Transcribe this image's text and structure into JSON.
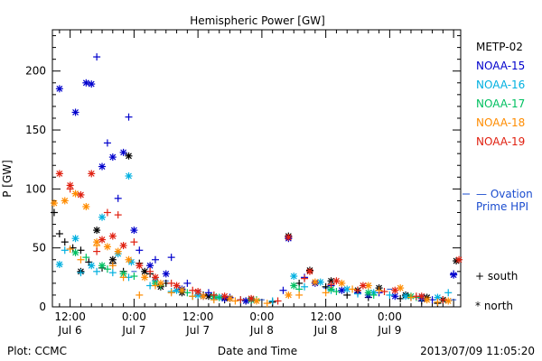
{
  "footer": {
    "plot_source": "Plot: CCMC",
    "timestamp": "2013/07/09 11:05:20"
  },
  "ovation": {
    "line1": "— Ovation",
    "line2": "Prime HPI"
  },
  "markers": {
    "south_label": "+ south",
    "north_label": "* north"
  },
  "chart_data": {
    "type": "scatter",
    "title": "Hemispheric Power [GW]",
    "xlabel": "Date and Time",
    "ylabel": "P [GW]",
    "ylim": [
      0,
      235
    ],
    "xlim": [
      "2013-07-06T08:40",
      "2013-07-09T13:20"
    ],
    "yticks": [
      0,
      50,
      100,
      150,
      200
    ],
    "xticks": [
      {
        "t": "2013-07-06T12:00",
        "time": "12:00",
        "date": "Jul 6"
      },
      {
        "t": "2013-07-07T00:00",
        "time": "0:00",
        "date": "Jul 7"
      },
      {
        "t": "2013-07-07T12:00",
        "time": "12:00",
        "date": "Jul 7"
      },
      {
        "t": "2013-07-08T00:00",
        "time": "0:00",
        "date": "Jul 8"
      },
      {
        "t": "2013-07-08T12:00",
        "time": "12:00",
        "date": "Jul 8"
      },
      {
        "t": "2013-07-09T00:00",
        "time": "0:00",
        "date": "Jul 9"
      }
    ],
    "legend_position": "right",
    "series": [
      {
        "name": "METP-02",
        "color": "#000000",
        "south": [
          [
            "2013-07-06T09:00",
            80
          ],
          [
            "2013-07-06T10:00",
            62
          ],
          [
            "2013-07-06T11:00",
            55
          ],
          [
            "2013-07-06T12:30",
            50
          ],
          [
            "2013-07-06T14:00",
            48
          ],
          [
            "2013-07-06T15:30",
            38
          ],
          [
            "2013-07-06T18:00",
            33
          ],
          [
            "2013-07-06T20:00",
            37
          ],
          [
            "2013-07-06T22:00",
            30
          ],
          [
            "2013-07-07T01:00",
            37
          ],
          [
            "2013-07-07T03:00",
            28
          ],
          [
            "2013-07-07T06:00",
            20
          ],
          [
            "2013-07-07T09:00",
            14
          ],
          [
            "2013-07-07T13:00",
            10
          ],
          [
            "2013-07-07T17:00",
            6
          ],
          [
            "2013-07-07T21:00",
            5
          ],
          [
            "2013-07-08T02:00",
            4
          ],
          [
            "2013-07-08T07:00",
            20
          ],
          [
            "2013-07-08T12:00",
            17
          ],
          [
            "2013-07-08T16:00",
            10
          ],
          [
            "2013-07-08T20:00",
            8
          ],
          [
            "2013-07-09T02:00",
            7
          ],
          [
            "2013-07-09T06:00",
            5
          ],
          [
            "2013-07-09T09:00",
            3
          ]
        ],
        "north": [
          [
            "2013-07-06T14:00",
            30
          ],
          [
            "2013-07-06T17:00",
            65
          ],
          [
            "2013-07-06T20:00",
            40
          ],
          [
            "2013-07-06T23:00",
            128
          ],
          [
            "2013-07-07T02:00",
            30
          ],
          [
            "2013-07-07T05:00",
            17
          ],
          [
            "2013-07-07T09:00",
            12
          ],
          [
            "2013-07-07T14:00",
            9
          ],
          [
            "2013-07-07T18:00",
            7
          ],
          [
            "2013-07-07T22:00",
            6
          ],
          [
            "2013-07-08T05:00",
            60
          ],
          [
            "2013-07-08T09:00",
            31
          ],
          [
            "2013-07-08T13:00",
            22
          ],
          [
            "2013-07-08T18:00",
            14
          ],
          [
            "2013-07-08T22:00",
            16
          ],
          [
            "2013-07-09T03:00",
            10
          ],
          [
            "2013-07-09T07:00",
            8
          ],
          [
            "2013-07-09T10:00",
            6
          ],
          [
            "2013-07-09T12:30",
            39
          ]
        ]
      },
      {
        "name": "NOAA-15",
        "color": "#0000cc",
        "south": [
          [
            "2013-07-06T17:00",
            212
          ],
          [
            "2013-07-06T19:00",
            139
          ],
          [
            "2013-07-06T21:00",
            92
          ],
          [
            "2013-07-06T23:00",
            161
          ],
          [
            "2013-07-07T01:00",
            48
          ],
          [
            "2013-07-07T04:00",
            40
          ],
          [
            "2013-07-07T07:00",
            42
          ],
          [
            "2013-07-07T10:00",
            20
          ],
          [
            "2013-07-07T14:00",
            12
          ],
          [
            "2013-07-07T18:00",
            8
          ],
          [
            "2013-07-07T22:00",
            6
          ],
          [
            "2013-07-08T04:00",
            14
          ],
          [
            "2013-07-08T08:00",
            25
          ],
          [
            "2013-07-08T13:00",
            18
          ],
          [
            "2013-07-08T18:00",
            12
          ],
          [
            "2013-07-08T22:00",
            12
          ],
          [
            "2013-07-09T04:00",
            8
          ],
          [
            "2013-07-09T08:00",
            6
          ],
          [
            "2013-07-09T12:00",
            28
          ]
        ],
        "north": [
          [
            "2013-07-06T10:00",
            185
          ],
          [
            "2013-07-06T13:00",
            165
          ],
          [
            "2013-07-06T15:00",
            190
          ],
          [
            "2013-07-06T16:00",
            189
          ],
          [
            "2013-07-06T18:00",
            119
          ],
          [
            "2013-07-06T20:00",
            127
          ],
          [
            "2013-07-06T22:00",
            131
          ],
          [
            "2013-07-07T00:00",
            65
          ],
          [
            "2013-07-07T03:00",
            35
          ],
          [
            "2013-07-07T06:00",
            28
          ],
          [
            "2013-07-07T09:00",
            15
          ],
          [
            "2013-07-07T13:00",
            9
          ],
          [
            "2013-07-07T17:00",
            7
          ],
          [
            "2013-07-07T21:00",
            5
          ],
          [
            "2013-07-08T05:00",
            58
          ],
          [
            "2013-07-08T10:00",
            20
          ],
          [
            "2013-07-08T15:00",
            14
          ],
          [
            "2013-07-08T20:00",
            10
          ],
          [
            "2013-07-09T01:00",
            9
          ],
          [
            "2013-07-09T06:00",
            7
          ],
          [
            "2013-07-09T12:00",
            27
          ]
        ]
      },
      {
        "name": "NOAA-16",
        "color": "#00b0e0",
        "south": [
          [
            "2013-07-06T11:00",
            48
          ],
          [
            "2013-07-06T14:00",
            29
          ],
          [
            "2013-07-06T17:00",
            30
          ],
          [
            "2013-07-06T20:00",
            29
          ],
          [
            "2013-07-06T23:00",
            25
          ],
          [
            "2013-07-07T03:00",
            18
          ],
          [
            "2013-07-07T07:00",
            13
          ],
          [
            "2013-07-07T11:00",
            9
          ],
          [
            "2013-07-07T15:00",
            7
          ],
          [
            "2013-07-07T20:00",
            6
          ],
          [
            "2013-07-08T02:00",
            5
          ],
          [
            "2013-07-08T08:00",
            17
          ],
          [
            "2013-07-08T13:00",
            14
          ],
          [
            "2013-07-08T18:00",
            11
          ],
          [
            "2013-07-09T00:00",
            10
          ],
          [
            "2013-07-09T06:00",
            8
          ],
          [
            "2013-07-09T11:00",
            12
          ]
        ],
        "north": [
          [
            "2013-07-06T10:00",
            36
          ],
          [
            "2013-07-06T13:00",
            58
          ],
          [
            "2013-07-06T16:00",
            35
          ],
          [
            "2013-07-06T18:00",
            76
          ],
          [
            "2013-07-06T21:00",
            45
          ],
          [
            "2013-07-06T23:00",
            111
          ],
          [
            "2013-07-06T23:30",
            38
          ],
          [
            "2013-07-07T04:00",
            22
          ],
          [
            "2013-07-07T08:00",
            14
          ],
          [
            "2013-07-07T12:00",
            10
          ],
          [
            "2013-07-07T16:00",
            8
          ],
          [
            "2013-07-07T22:00",
            6
          ],
          [
            "2013-07-08T06:00",
            26
          ],
          [
            "2013-07-08T11:00",
            21
          ],
          [
            "2013-07-08T16:00",
            15
          ],
          [
            "2013-07-08T21:00",
            12
          ],
          [
            "2013-07-09T03:00",
            9
          ],
          [
            "2013-07-09T09:00",
            8
          ]
        ]
      },
      {
        "name": "NOAA-17",
        "color": "#00c060",
        "south": [
          [
            "2013-07-06T15:00",
            42
          ],
          [
            "2013-07-06T19:00",
            32
          ],
          [
            "2013-07-07T00:00",
            26
          ],
          [
            "2013-07-07T05:00",
            18
          ],
          [
            "2013-07-07T10:00",
            12
          ],
          [
            "2013-07-07T16:00",
            8
          ],
          [
            "2013-07-07T23:00",
            6
          ],
          [
            "2013-07-08T07:00",
            15
          ],
          [
            "2013-07-08T14:00",
            13
          ],
          [
            "2013-07-08T21:00",
            10
          ],
          [
            "2013-07-09T05:00",
            8
          ]
        ],
        "north": [
          [
            "2013-07-06T13:00",
            46
          ],
          [
            "2013-07-06T18:00",
            35
          ],
          [
            "2013-07-06T22:00",
            28
          ],
          [
            "2013-07-07T04:00",
            20
          ],
          [
            "2013-07-07T09:00",
            14
          ],
          [
            "2013-07-07T15:00",
            9
          ],
          [
            "2013-07-07T22:00",
            6
          ],
          [
            "2013-07-08T06:00",
            18
          ],
          [
            "2013-07-08T13:00",
            15
          ],
          [
            "2013-07-08T20:00",
            12
          ],
          [
            "2013-07-09T04:00",
            9
          ]
        ]
      },
      {
        "name": "NOAA-18",
        "color": "#ff8c00",
        "south": [
          [
            "2013-07-06T12:00",
            49
          ],
          [
            "2013-07-06T14:00",
            40
          ],
          [
            "2013-07-06T17:00",
            52
          ],
          [
            "2013-07-06T20:00",
            35
          ],
          [
            "2013-07-06T22:00",
            25
          ],
          [
            "2013-07-07T01:00",
            10
          ],
          [
            "2013-07-07T04:00",
            18
          ],
          [
            "2013-07-07T07:00",
            12
          ],
          [
            "2013-07-07T11:00",
            9
          ],
          [
            "2013-07-07T15:00",
            6
          ],
          [
            "2013-07-07T19:00",
            5
          ],
          [
            "2013-07-08T01:00",
            3
          ],
          [
            "2013-07-08T07:00",
            10
          ],
          [
            "2013-07-08T12:00",
            12
          ],
          [
            "2013-07-08T17:00",
            15
          ],
          [
            "2013-07-08T22:00",
            14
          ],
          [
            "2013-07-09T04:00",
            8
          ],
          [
            "2013-07-09T09:00",
            4
          ]
        ],
        "north": [
          [
            "2013-07-06T09:00",
            88
          ],
          [
            "2013-07-06T11:00",
            90
          ],
          [
            "2013-07-06T13:00",
            96
          ],
          [
            "2013-07-06T15:00",
            85
          ],
          [
            "2013-07-06T17:00",
            55
          ],
          [
            "2013-07-06T19:00",
            51
          ],
          [
            "2013-07-06T21:00",
            47
          ],
          [
            "2013-07-06T23:00",
            40
          ],
          [
            "2013-07-07T02:00",
            25
          ],
          [
            "2013-07-07T05:00",
            20
          ],
          [
            "2013-07-07T09:00",
            14
          ],
          [
            "2013-07-07T13:00",
            9
          ],
          [
            "2013-07-07T18:00",
            7
          ],
          [
            "2013-07-07T23:00",
            5
          ],
          [
            "2013-07-08T05:00",
            10
          ],
          [
            "2013-07-08T10:00",
            21
          ],
          [
            "2013-07-08T15:00",
            20
          ],
          [
            "2013-07-08T20:00",
            18
          ],
          [
            "2013-07-09T02:00",
            16
          ],
          [
            "2013-07-09T07:00",
            6
          ],
          [
            "2013-07-09T11:00",
            5
          ]
        ]
      },
      {
        "name": "NOAA-19",
        "color": "#e02010",
        "south": [
          [
            "2013-07-06T12:00",
            100
          ],
          [
            "2013-07-06T17:00",
            47
          ],
          [
            "2013-07-06T19:00",
            80
          ],
          [
            "2013-07-06T21:00",
            78
          ],
          [
            "2013-07-07T00:00",
            55
          ],
          [
            "2013-07-07T03:00",
            30
          ],
          [
            "2013-07-07T07:00",
            20
          ],
          [
            "2013-07-07T11:00",
            14
          ],
          [
            "2013-07-07T15:00",
            10
          ],
          [
            "2013-07-07T20:00",
            6
          ],
          [
            "2013-07-08T03:00",
            5
          ],
          [
            "2013-07-08T08:00",
            24
          ],
          [
            "2013-07-08T13:00",
            19
          ],
          [
            "2013-07-08T18:00",
            14
          ],
          [
            "2013-07-08T23:00",
            13
          ],
          [
            "2013-07-09T05:00",
            9
          ],
          [
            "2013-07-09T10:00",
            6
          ]
        ],
        "north": [
          [
            "2013-07-06T10:00",
            113
          ],
          [
            "2013-07-06T12:00",
            103
          ],
          [
            "2013-07-06T14:00",
            95
          ],
          [
            "2013-07-06T16:00",
            113
          ],
          [
            "2013-07-06T18:00",
            57
          ],
          [
            "2013-07-06T20:00",
            60
          ],
          [
            "2013-07-06T22:00",
            52
          ],
          [
            "2013-07-07T01:00",
            35
          ],
          [
            "2013-07-07T04:00",
            25
          ],
          [
            "2013-07-07T08:00",
            18
          ],
          [
            "2013-07-07T12:00",
            13
          ],
          [
            "2013-07-07T17:00",
            9
          ],
          [
            "2013-07-07T22:00",
            7
          ],
          [
            "2013-07-08T05:00",
            59
          ],
          [
            "2013-07-08T09:00",
            30
          ],
          [
            "2013-07-08T14:00",
            22
          ],
          [
            "2013-07-08T19:00",
            18
          ],
          [
            "2013-07-09T01:00",
            14
          ],
          [
            "2013-07-09T06:00",
            9
          ],
          [
            "2013-07-09T13:00",
            40
          ]
        ]
      }
    ],
    "ovation_hpi": [
      [
        "2013-07-07T00:00",
        30
      ],
      [
        "2013-07-07T06:00",
        22
      ],
      [
        "2013-07-07T12:00",
        14
      ],
      [
        "2013-07-07T18:00",
        9
      ],
      [
        "2013-07-08T00:00",
        6
      ],
      [
        "2013-07-08T06:00",
        18
      ],
      [
        "2013-07-08T12:00",
        16
      ],
      [
        "2013-07-08T18:00",
        12
      ],
      [
        "2013-07-09T00:00",
        15
      ],
      [
        "2013-07-09T06:00",
        10
      ],
      [
        "2013-07-09T12:00",
        6
      ]
    ]
  }
}
